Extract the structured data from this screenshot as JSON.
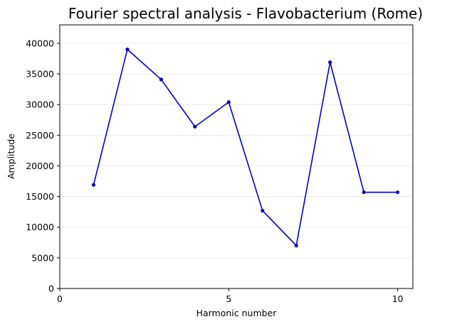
{
  "chart_data": {
    "type": "line",
    "title": "Fourier spectral analysis - Flavobacterium (Rome)",
    "xlabel": "Harmonic number",
    "ylabel": "Amplitude",
    "xlim": [
      0,
      10.45
    ],
    "ylim": [
      0,
      43000
    ],
    "x_ticks": [
      0,
      5,
      10
    ],
    "y_ticks": [
      0,
      5000,
      10000,
      15000,
      20000,
      25000,
      30000,
      35000,
      40000
    ],
    "grid": "horizontal",
    "legend": "none",
    "series": [
      {
        "color": "#0000c0",
        "marker": "circle",
        "x": [
          1,
          2,
          3,
          4,
          5,
          6,
          7,
          8,
          9,
          10
        ],
        "y": [
          16900,
          39000,
          34100,
          26400,
          30400,
          12700,
          7000,
          36900,
          15700,
          15700
        ]
      }
    ]
  }
}
